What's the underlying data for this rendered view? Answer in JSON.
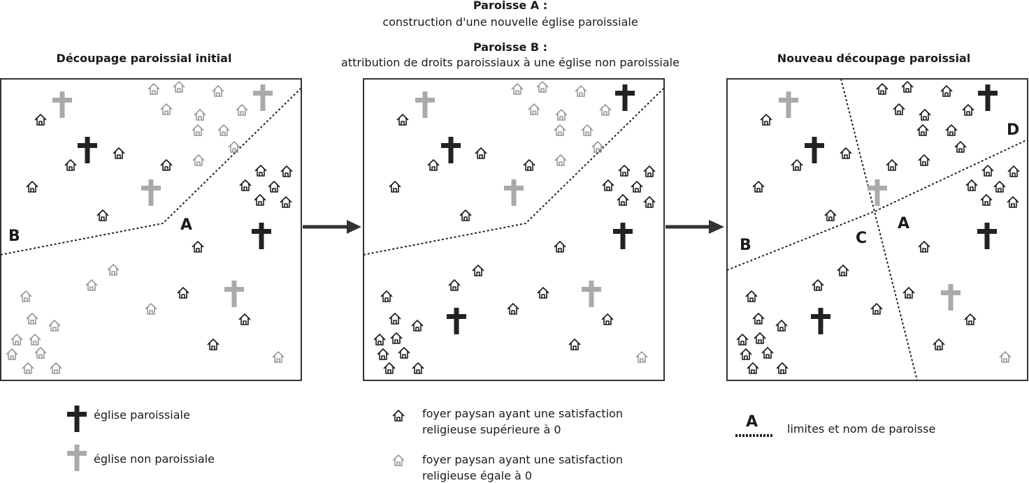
{
  "header": {
    "parish_a_title": "Paroisse A :",
    "parish_a_desc": "construction d'une nouvelle église paroissiale",
    "parish_b_title": "Paroisse B :",
    "parish_b_desc": "attribution de droits paroissiaux à une église non paroissiale"
  },
  "panels": [
    {
      "title": "Découpage paroissial initial",
      "labels": [
        "B",
        "A"
      ]
    },
    {
      "title": "",
      "labels": []
    },
    {
      "title": "Nouveau découpage paroissial",
      "labels": [
        "D",
        "A",
        "B",
        "C"
      ]
    }
  ],
  "legend": {
    "parish_church": "église paroissiale",
    "non_parish_church": "église non paroissiale",
    "house_positive_line1": "foyer paysan ayant une satisfaction",
    "house_positive_line2": "religieuse supérieure à 0",
    "house_zero_line1": "foyer paysan ayant une satisfaction",
    "house_zero_line2": "religieuse égale à 0",
    "boundary_letter": "A",
    "boundary_text": "limites et nom de paroisse"
  },
  "colors": {
    "parish_church": "#222222",
    "non_parish_church": "#aaaaaa",
    "house_positive": "#1a1a1a",
    "house_zero": "#999999"
  },
  "icons": [
    "cross-icon",
    "house-icon",
    "arrow-right-icon"
  ]
}
